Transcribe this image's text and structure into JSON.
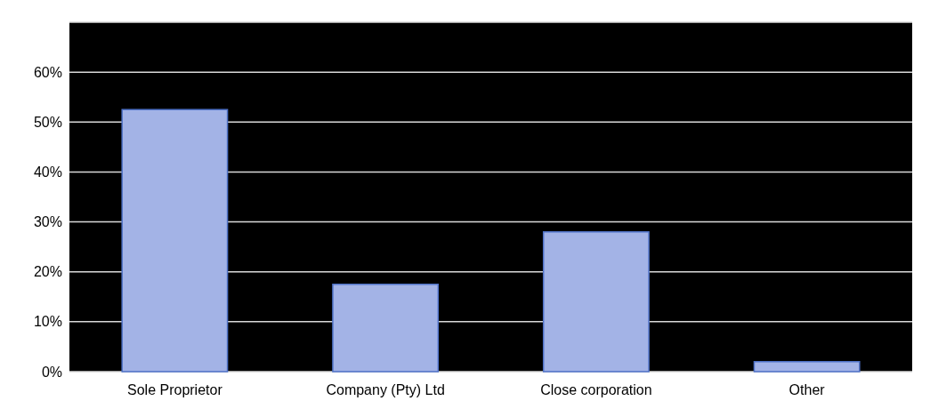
{
  "chart_data": {
    "type": "bar",
    "categories": [
      "Sole Proprietor",
      "Company (Pty) Ltd",
      "Close corporation",
      "Other"
    ],
    "values": [
      52.5,
      17.5,
      28,
      2
    ],
    "color": "#a3b3e6",
    "ylim": [
      0,
      70
    ],
    "yticks": [
      {
        "value": 0,
        "label": "0%"
      },
      {
        "value": 10,
        "label": "10%"
      },
      {
        "value": 20,
        "label": "20%"
      },
      {
        "value": 30,
        "label": "30%"
      },
      {
        "value": 40,
        "label": "40%"
      },
      {
        "value": 50,
        "label": "50%"
      },
      {
        "value": 60,
        "label": "60%"
      },
      {
        "value": 70,
        "label": null
      }
    ],
    "grid": "y"
  }
}
